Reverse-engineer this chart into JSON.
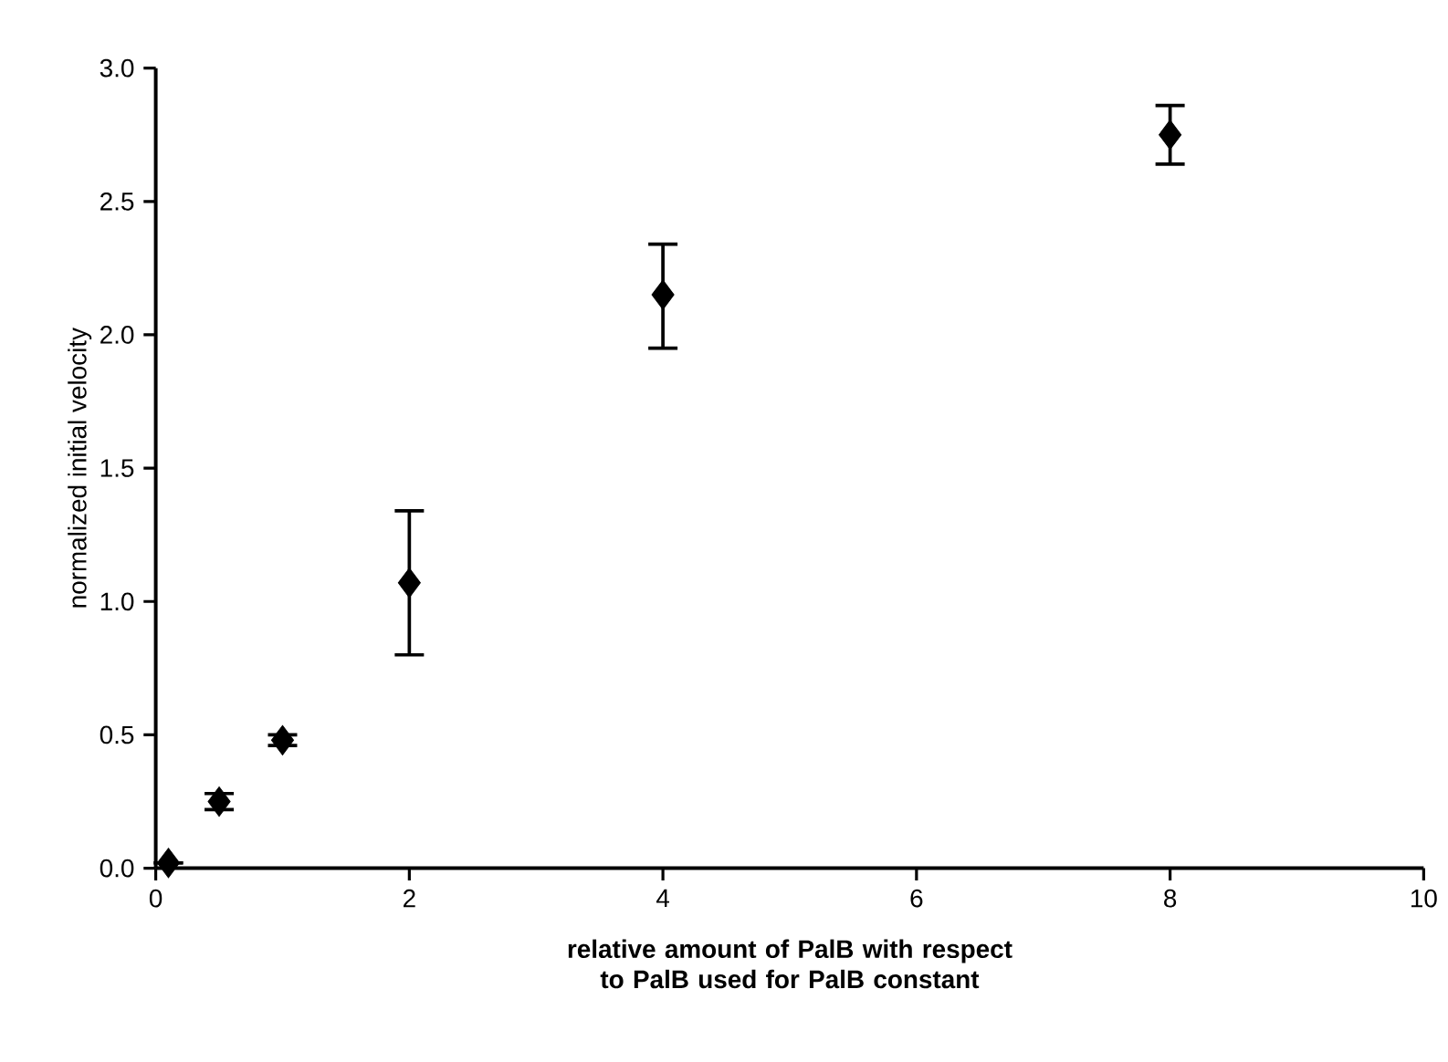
{
  "chart_data": {
    "type": "scatter",
    "xlabel": "relative amount of PalB with respect to PalB used for PalB constant",
    "ylabel": "normalized initial velocity",
    "x": [
      0.1,
      0.5,
      1,
      2,
      4,
      8
    ],
    "values": [
      0.02,
      0.25,
      0.48,
      1.07,
      2.15,
      2.75
    ],
    "errors": [
      null,
      [
        0.22,
        0.28
      ],
      [
        0.46,
        0.5
      ],
      [
        0.8,
        1.34
      ],
      [
        1.95,
        2.34
      ],
      [
        2.64,
        2.86
      ]
    ],
    "color": "#000000",
    "marker": "diamond",
    "grid": false,
    "xlim": [
      0,
      10
    ],
    "xticks": [
      0,
      2,
      4,
      6,
      8,
      10
    ],
    "ylim": [
      0,
      3
    ],
    "yticks": [
      {
        "value": 0,
        "label": "0.0"
      },
      {
        "value": 0.5,
        "label": "0.5"
      },
      {
        "value": 1,
        "label": "1.0"
      },
      {
        "value": 1.5,
        "label": "1.5"
      },
      {
        "value": 2,
        "label": "2.0"
      },
      {
        "value": 2.5,
        "label": "2.5"
      },
      {
        "value": 3,
        "label": "3.0"
      }
    ]
  }
}
